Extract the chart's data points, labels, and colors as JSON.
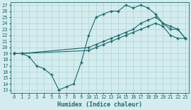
{
  "bg_color": "#d4ecee",
  "grid_color": "#b0d4d8",
  "line_color": "#1a6b6b",
  "xlabel": "Humidex (Indice chaleur)",
  "xlim": [
    -0.5,
    23.5
  ],
  "ylim": [
    12.5,
    27.5
  ],
  "xticks": [
    0,
    1,
    2,
    3,
    4,
    5,
    6,
    7,
    8,
    9,
    10,
    11,
    12,
    13,
    14,
    15,
    16,
    17,
    18,
    19,
    20,
    21,
    22,
    23
  ],
  "yticks": [
    13,
    14,
    15,
    16,
    17,
    18,
    19,
    20,
    21,
    22,
    23,
    24,
    25,
    26,
    27
  ],
  "curve1_x": [
    0,
    1,
    2,
    3,
    4,
    5,
    6,
    7,
    8,
    9,
    10,
    11,
    12,
    13,
    14,
    15,
    16,
    17,
    18,
    19,
    20,
    21,
    22,
    23
  ],
  "curve1_y": [
    19,
    19,
    18.5,
    17,
    16.5,
    15.5,
    13,
    13.5,
    14,
    17.5,
    22,
    25,
    25.5,
    26,
    26,
    27,
    26.5,
    27,
    26.5,
    25.5,
    24,
    23,
    23,
    21.5
  ],
  "curve2_x": [
    0,
    1,
    10,
    11,
    12,
    13,
    14,
    15,
    16,
    17,
    18,
    19,
    20,
    21,
    22,
    23
  ],
  "curve2_y": [
    19,
    19,
    20,
    20.5,
    21,
    21.5,
    22,
    22.5,
    23,
    24,
    24.5,
    25,
    24,
    23.5,
    23,
    21.5
  ],
  "curve3_x": [
    0,
    1,
    10,
    11,
    12,
    13,
    14,
    15,
    16,
    17,
    18,
    19,
    20,
    21,
    22,
    23
  ],
  "curve3_y": [
    19,
    19,
    19.5,
    20,
    20.5,
    21,
    21.5,
    22,
    22.5,
    23,
    23.5,
    24,
    23.5,
    22,
    21.5,
    21.5
  ]
}
